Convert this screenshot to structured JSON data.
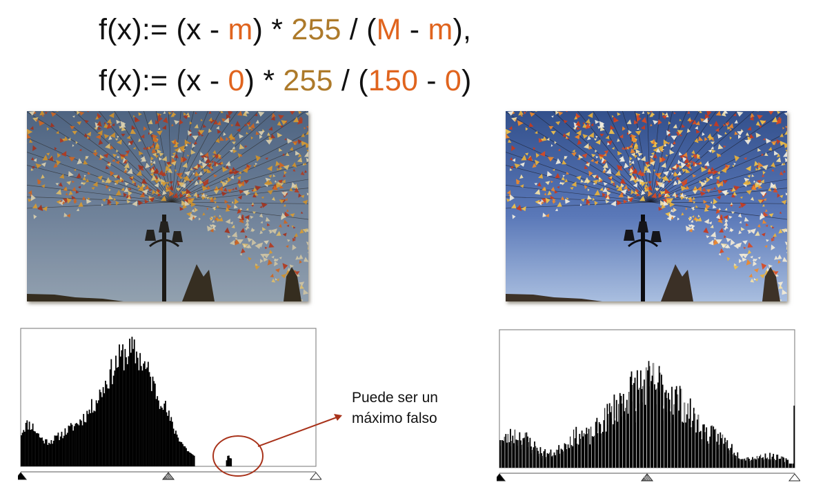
{
  "formula_1": {
    "f": "f(x):= (x - ",
    "m1": "m",
    "mid1": ") * ",
    "k": "255",
    "mid2": " / (",
    "M": "M",
    "sep": " - ",
    "m2": "m",
    "end": "),"
  },
  "formula_2": {
    "f": "f(x):= (x - ",
    "m1": "0",
    "mid1": ") * ",
    "k": "255",
    "mid2": " / (",
    "M": "150",
    "sep": " - ",
    "m2": "0",
    "end": ")"
  },
  "annotation": {
    "line1": "Puede ser un",
    "line2": "máximo falso"
  },
  "photos": {
    "left": "original-photo",
    "right": "stretched-photo"
  },
  "colors": {
    "orange": "#e0641e",
    "gold": "#ad7a2a",
    "annotation_red": "#a8321a",
    "sky_left": "#6d84a8",
    "sky_right": "#5a78b8"
  },
  "histograms": {
    "left": {
      "type": "histogram",
      "x_range": [
        0,
        255
      ],
      "peak_bin": 95,
      "content_max_bin": 150,
      "false_max_bin": 180,
      "slider_markers": [
        "black-point",
        "mid-point",
        "white-point"
      ]
    },
    "right": {
      "type": "histogram",
      "x_range": [
        0,
        255
      ],
      "peak_bin": 130,
      "content_max_bin": 255,
      "comb_gaps": true,
      "slider_markers": [
        "black-point",
        "mid-point",
        "white-point"
      ]
    }
  }
}
